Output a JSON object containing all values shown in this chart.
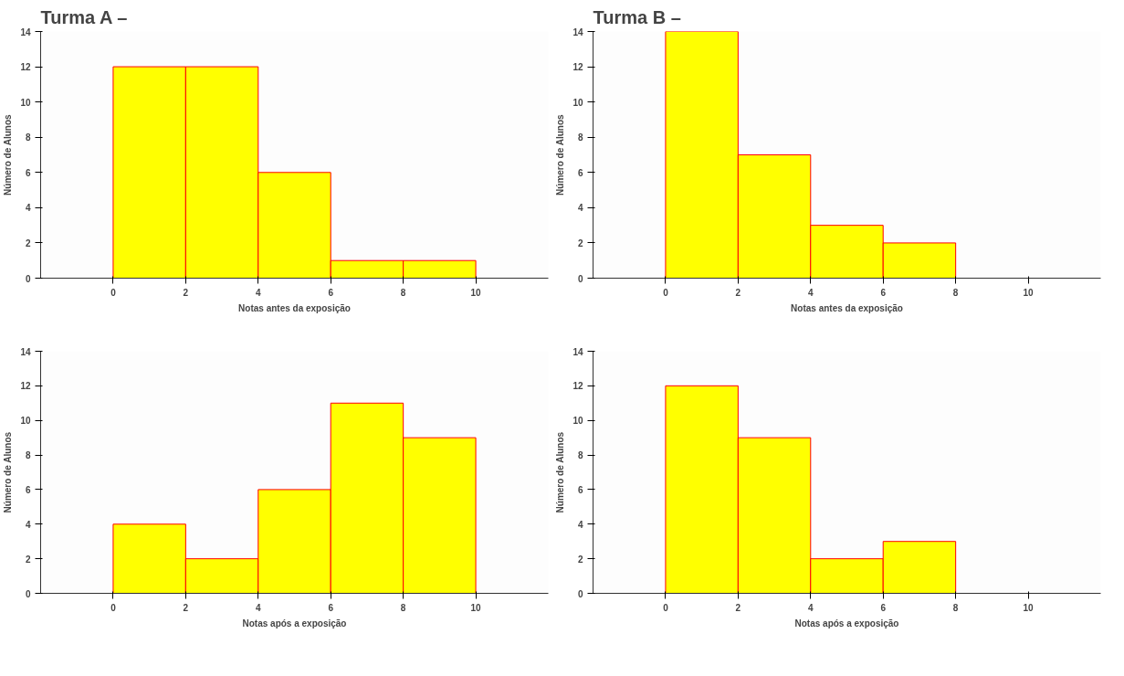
{
  "chart_data": [
    {
      "type": "histogram",
      "title": "Turma A –",
      "xlabel": "Notas antes da exposição",
      "ylabel": "Número de Alunos",
      "bins": [
        0,
        2,
        4,
        6,
        8,
        10
      ],
      "values": [
        12,
        12,
        6,
        1,
        1
      ],
      "color": "#ffff00",
      "xlim": [
        -2,
        12
      ],
      "xticks": [
        0,
        2,
        4,
        6,
        8,
        10
      ],
      "ylim": [
        0,
        14
      ],
      "yticks": [
        0,
        2,
        4,
        6,
        8,
        10,
        12,
        14
      ],
      "grid": false
    },
    {
      "type": "histogram",
      "title": "Turma B –",
      "xlabel": "Notas antes da exposição",
      "ylabel": "Número de Alunos",
      "bins": [
        0,
        2,
        4,
        6,
        8
      ],
      "values": [
        14,
        7,
        3,
        2
      ],
      "color": "#ffff00",
      "xlim": [
        -2,
        12
      ],
      "xticks": [
        0,
        2,
        4,
        6,
        8,
        10
      ],
      "ylim": [
        0,
        14
      ],
      "yticks": [
        0,
        2,
        4,
        6,
        8,
        10,
        12,
        14
      ],
      "grid": false
    },
    {
      "type": "histogram",
      "xlabel": "Notas após a exposição",
      "ylabel": "Número de Alunos",
      "bins": [
        0,
        2,
        4,
        6,
        8,
        10
      ],
      "values": [
        4,
        2,
        6,
        11,
        9
      ],
      "color": "#ffff00",
      "xlim": [
        -2,
        12
      ],
      "xticks": [
        0,
        2,
        4,
        6,
        8,
        10
      ],
      "ylim": [
        0,
        14
      ],
      "yticks": [
        0,
        2,
        4,
        6,
        8,
        10,
        12,
        14
      ],
      "grid": false
    },
    {
      "type": "histogram",
      "xlabel": "Notas após a exposição",
      "ylabel": "Número de Alunos",
      "bins": [
        0,
        2,
        4,
        6,
        8
      ],
      "values": [
        12,
        9,
        2,
        3
      ],
      "color": "#ffff00",
      "xlim": [
        -2,
        12
      ],
      "xticks": [
        0,
        2,
        4,
        6,
        8,
        10
      ],
      "ylim": [
        0,
        14
      ],
      "yticks": [
        0,
        2,
        4,
        6,
        8,
        10,
        12,
        14
      ],
      "grid": false
    }
  ]
}
